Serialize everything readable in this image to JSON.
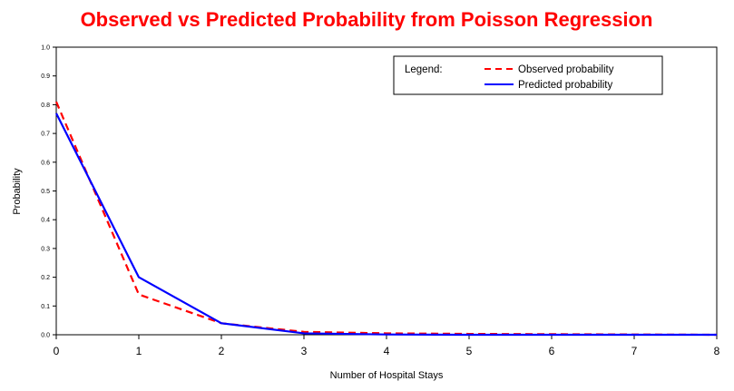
{
  "chart_data": {
    "type": "line",
    "title": "Observed vs Predicted Probability from Poisson Regression",
    "xlabel": "Number of Hospital Stays",
    "ylabel": "Probability",
    "x": [
      0,
      1,
      2,
      3,
      4,
      5,
      6,
      7,
      8
    ],
    "xlim": [
      0,
      8
    ],
    "ylim": [
      0,
      1
    ],
    "yticks": [
      "0.0",
      "0.1",
      "0.2",
      "0.3",
      "0.4",
      "0.5",
      "0.6",
      "0.7",
      "0.8",
      "0.9",
      "1.0"
    ],
    "xticks": [
      "0",
      "1",
      "2",
      "3",
      "4",
      "5",
      "6",
      "7",
      "8"
    ],
    "grid": false,
    "legend": {
      "position": "top-right",
      "title": "Legend:",
      "entries": [
        "Observed probability",
        "Predicted probability"
      ]
    },
    "series": [
      {
        "name": "Observed probability",
        "color": "#ff0000",
        "dash": "dashed",
        "values": [
          0.81,
          0.14,
          0.04,
          0.01,
          0.005,
          0.003,
          0.002,
          0.001,
          0.0
        ]
      },
      {
        "name": "Predicted probability",
        "color": "#0000ff",
        "dash": "solid",
        "values": [
          0.77,
          0.2,
          0.04,
          0.005,
          0.001,
          0.0,
          0.0,
          0.0,
          0.0
        ]
      }
    ]
  }
}
